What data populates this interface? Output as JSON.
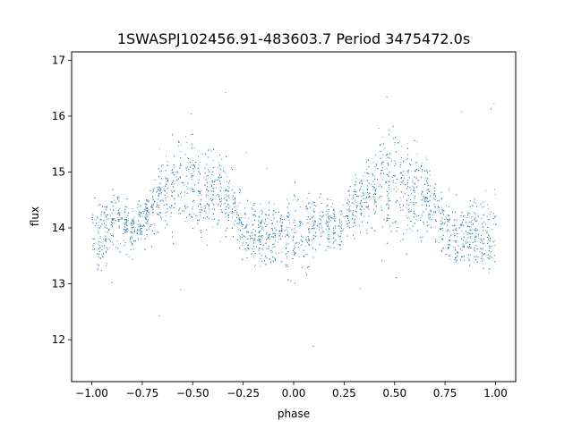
{
  "chart_data": {
    "type": "scatter",
    "title": "1SWASPJ102456.91-483603.7 Period 3475472.0s",
    "xlabel": "phase",
    "ylabel": "flux",
    "xlim": [
      -1.1,
      1.1
    ],
    "ylim": [
      11.25,
      17.15
    ],
    "x_ticks": [
      -1.0,
      -0.75,
      -0.5,
      -0.25,
      0.0,
      0.25,
      0.5,
      0.75,
      1.0
    ],
    "x_tick_labels": [
      "−1.00",
      "−0.75",
      "−0.50",
      "−0.25",
      "0.00",
      "0.25",
      "0.50",
      "0.75",
      "1.00"
    ],
    "y_ticks": [
      12,
      13,
      14,
      15,
      16,
      17
    ],
    "y_tick_labels": [
      "12",
      "13",
      "14",
      "15",
      "16",
      "17"
    ],
    "grid": false,
    "legend": "none",
    "marker_color": "#1f77b4",
    "series": [
      {
        "x": [
          -1.0,
          -0.95,
          -0.9,
          -0.85,
          -0.8,
          -0.75,
          -0.7,
          -0.65,
          -0.6,
          -0.55,
          -0.5,
          -0.45,
          -0.4,
          -0.35,
          -0.3,
          -0.25,
          -0.2,
          -0.15,
          -0.1,
          -0.05,
          0.0,
          0.05,
          0.1,
          0.15,
          0.2,
          0.25,
          0.3,
          0.35,
          0.4,
          0.45,
          0.5,
          0.55,
          0.6,
          0.65,
          0.7,
          0.75,
          0.8,
          0.85,
          0.9,
          0.95,
          1.0
        ],
        "y": [
          14.0,
          13.9,
          14.1,
          14.1,
          14.0,
          14.1,
          14.4,
          14.6,
          14.7,
          14.9,
          14.8,
          14.6,
          14.7,
          14.6,
          14.4,
          14.0,
          13.9,
          13.9,
          13.9,
          13.8,
          13.8,
          13.9,
          14.1,
          14.1,
          14.0,
          14.1,
          14.4,
          14.6,
          14.7,
          14.9,
          14.8,
          14.6,
          14.7,
          14.6,
          14.4,
          14.0,
          13.9,
          13.9,
          13.9,
          13.8,
          14.0
        ],
        "y_spread": [
          0.6,
          0.6,
          0.5,
          0.5,
          0.4,
          0.4,
          0.5,
          0.6,
          0.7,
          0.8,
          0.9,
          0.8,
          0.7,
          0.6,
          0.5,
          0.5,
          0.5,
          0.5,
          0.5,
          0.6,
          0.6,
          0.6,
          0.5,
          0.5,
          0.4,
          0.4,
          0.5,
          0.6,
          0.7,
          0.8,
          0.9,
          0.8,
          0.7,
          0.6,
          0.5,
          0.5,
          0.5,
          0.5,
          0.5,
          0.6,
          0.6
        ]
      }
    ]
  }
}
